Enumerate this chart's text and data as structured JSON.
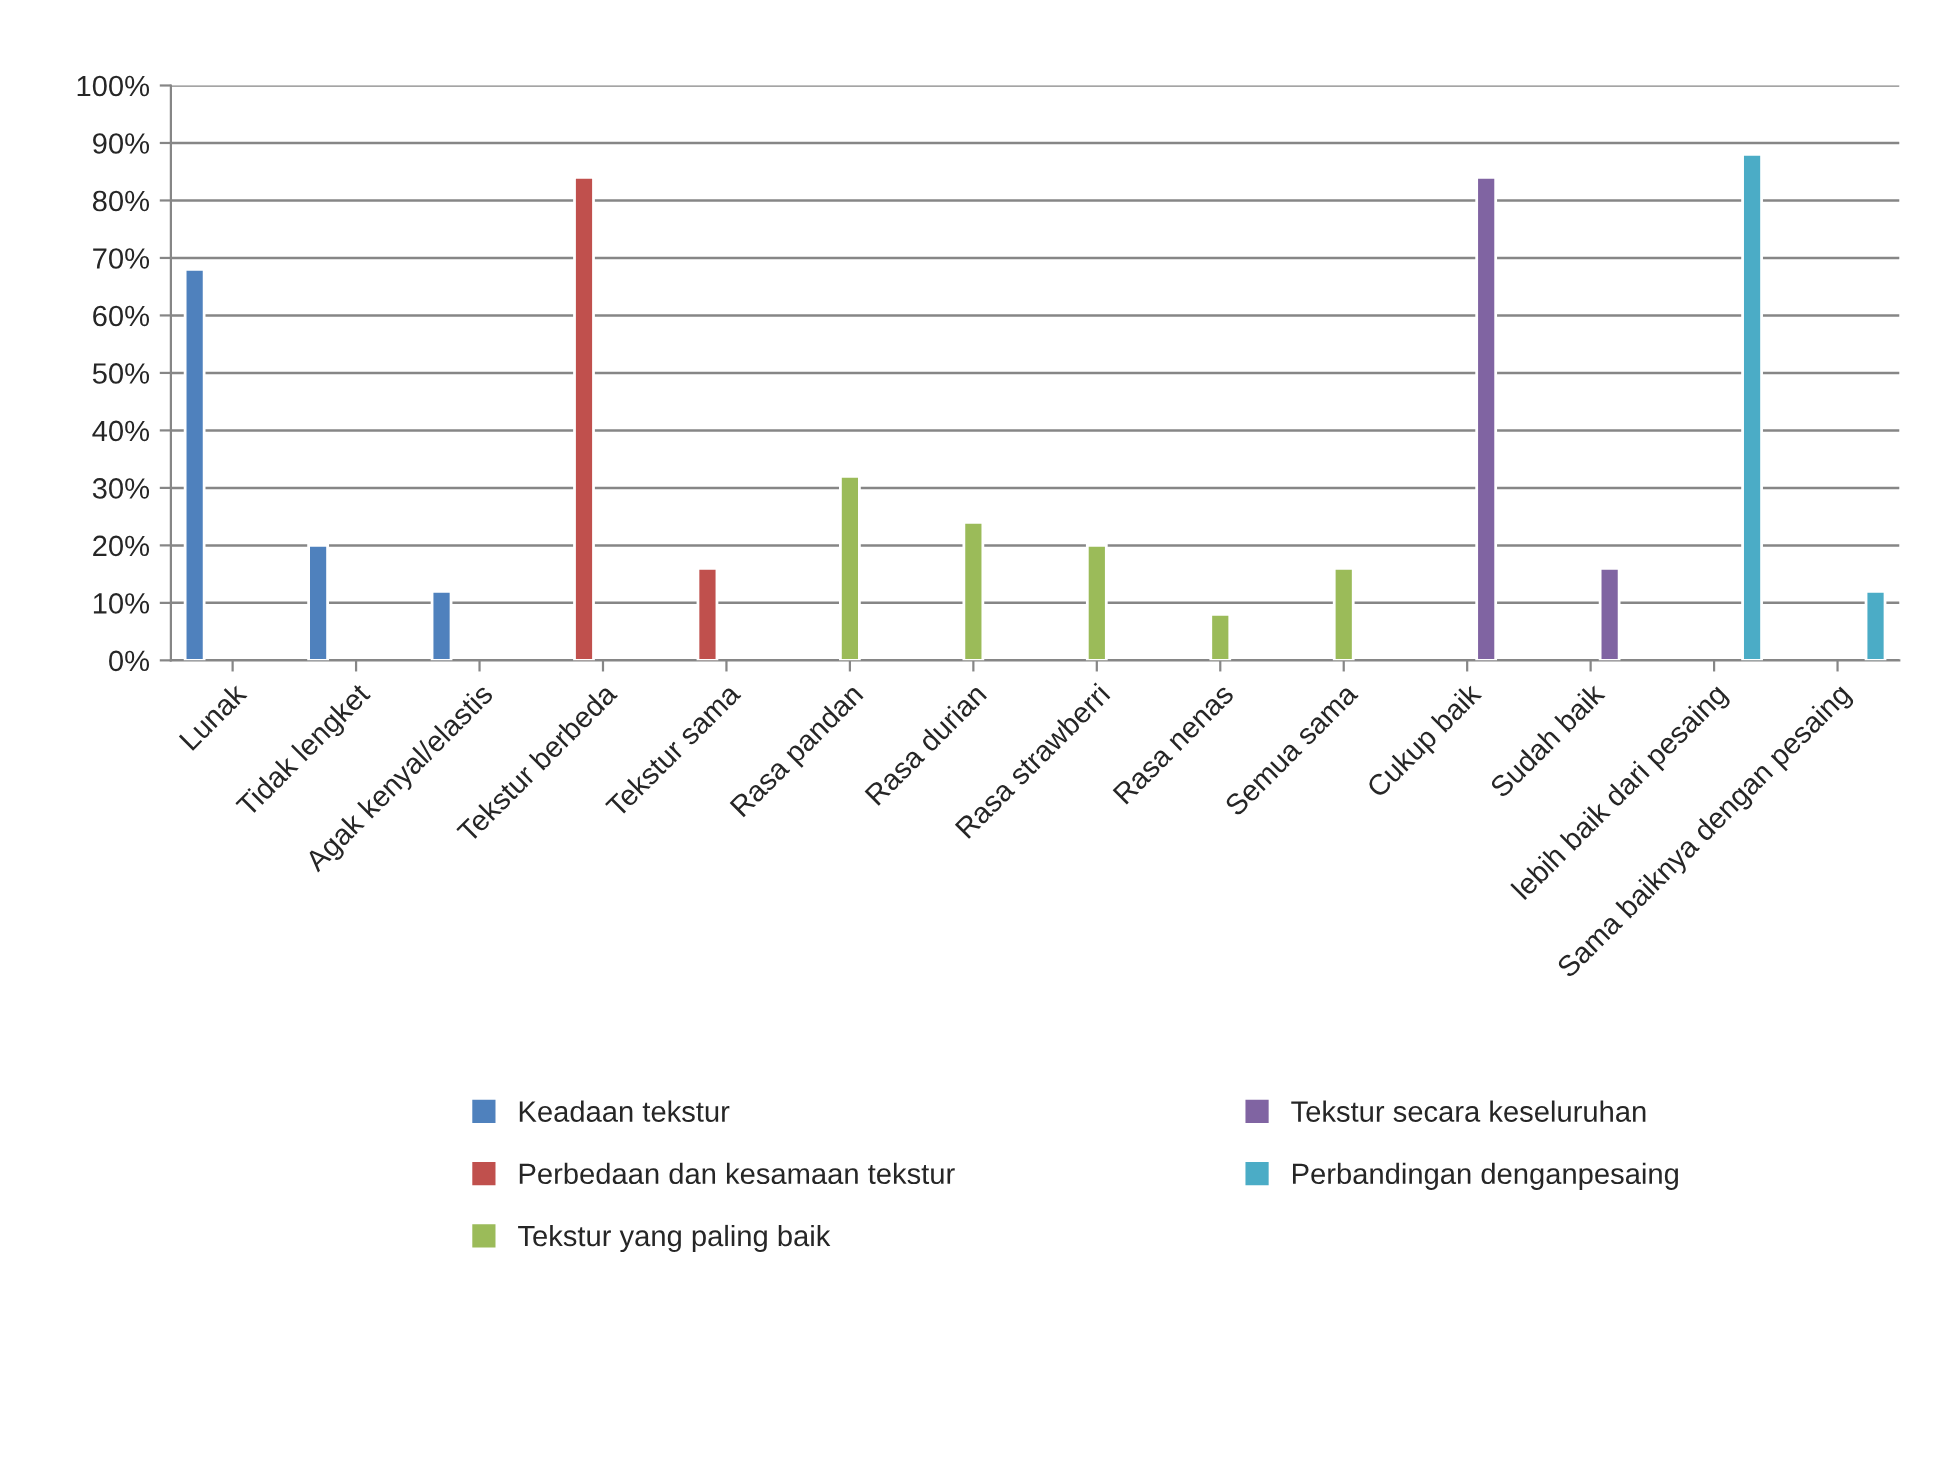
{
  "chart_data": {
    "type": "bar",
    "categories": [
      "Lunak",
      "Tidak lengket",
      "Agak kenyal/elastis",
      "Tekstur berbeda",
      "Tekstur sama",
      "Rasa pandan",
      "Rasa durian",
      "Rasa strawberri",
      "Rasa nenas",
      "Semua sama",
      "Cukup baik",
      "Sudah baik",
      "lebih baik dari pesaing",
      "Sama baiknya dengan pesaing"
    ],
    "series": [
      {
        "name": "Keadaan tekstur",
        "color": "#4f81bd",
        "values": [
          68,
          20,
          12,
          null,
          null,
          null,
          null,
          null,
          null,
          null,
          null,
          null,
          null,
          null
        ]
      },
      {
        "name": "Perbedaan dan kesamaan tekstur",
        "color": "#c0504d",
        "values": [
          null,
          null,
          null,
          84,
          16,
          null,
          null,
          null,
          null,
          null,
          null,
          null,
          null,
          null
        ]
      },
      {
        "name": "Tekstur yang paling baik",
        "color": "#9bbb59",
        "values": [
          null,
          null,
          null,
          null,
          null,
          32,
          24,
          20,
          8,
          16,
          null,
          null,
          null,
          null
        ]
      },
      {
        "name": "Tekstur secara keseluruhan",
        "color": "#8064a2",
        "values": [
          null,
          null,
          null,
          null,
          null,
          null,
          null,
          null,
          null,
          null,
          84,
          16,
          null,
          null
        ]
      },
      {
        "name": "Perbandingan denganpesaing",
        "color": "#4bacc6",
        "values": [
          null,
          null,
          null,
          null,
          null,
          null,
          null,
          null,
          null,
          null,
          null,
          null,
          88,
          12
        ]
      }
    ],
    "ylim": [
      0,
      100
    ],
    "yticks": [
      {
        "value": 0,
        "label": "0%"
      },
      {
        "value": 10,
        "label": "10%"
      },
      {
        "value": 20,
        "label": "20%"
      },
      {
        "value": 30,
        "label": "30%"
      },
      {
        "value": 40,
        "label": "40%"
      },
      {
        "value": 50,
        "label": "50%"
      },
      {
        "value": 60,
        "label": "60%"
      },
      {
        "value": 70,
        "label": "70%"
      },
      {
        "value": 80,
        "label": "80%"
      },
      {
        "value": 90,
        "label": "90%"
      },
      {
        "value": 100,
        "label": "100%"
      }
    ],
    "grid": "y",
    "legend": "bottom"
  }
}
